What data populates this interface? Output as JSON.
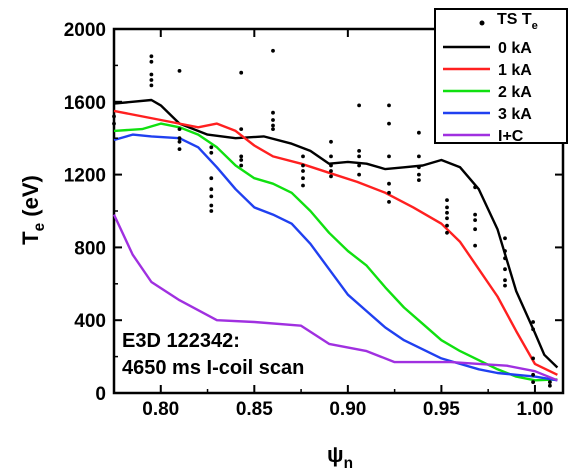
{
  "chart_data": {
    "type": "line",
    "xlabel": {
      "main": "ψ",
      "sub": "n"
    },
    "ylabel": {
      "main": "T",
      "sub": "e",
      "suffix": " (eV)"
    },
    "xlim": [
      0.775,
      1.015
    ],
    "ylim": [
      0,
      2000
    ],
    "xticks": [
      0.8,
      0.85,
      0.9,
      0.95,
      1.0
    ],
    "xtick_labels": [
      "0.80",
      "0.85",
      "0.90",
      "0.95",
      "1.00"
    ],
    "yticks": [
      0,
      400,
      800,
      1200,
      1600,
      2000
    ],
    "ytick_labels": [
      "0",
      "400",
      "800",
      "1200",
      "1600",
      "2000"
    ],
    "grid": false,
    "legend_position": "top-right",
    "legend_scatter": {
      "main": "TS T",
      "sub": "e"
    },
    "annotation": [
      "E3D 122342:",
      "4650 ms I-coil scan"
    ],
    "series": [
      {
        "name": "0 kA",
        "color": "#000000",
        "x": [
          0.775,
          0.795,
          0.8,
          0.81,
          0.825,
          0.84,
          0.855,
          0.87,
          0.88,
          0.89,
          0.9,
          0.91,
          0.92,
          0.93,
          0.94,
          0.95,
          0.96,
          0.97,
          0.98,
          0.99,
          1.0,
          1.005,
          1.012
        ],
        "y": [
          1590,
          1610,
          1580,
          1480,
          1420,
          1400,
          1410,
          1370,
          1330,
          1260,
          1270,
          1260,
          1230,
          1240,
          1250,
          1280,
          1240,
          1120,
          900,
          560,
          330,
          210,
          140
        ]
      },
      {
        "name": "1 kA",
        "color": "#ff2020",
        "x": [
          0.775,
          0.8,
          0.82,
          0.83,
          0.84,
          0.85,
          0.86,
          0.875,
          0.89,
          0.905,
          0.92,
          0.935,
          0.95,
          0.96,
          0.97,
          0.98,
          0.99,
          1.0,
          1.012
        ],
        "y": [
          1550,
          1500,
          1460,
          1480,
          1440,
          1360,
          1300,
          1260,
          1210,
          1160,
          1100,
          1020,
          930,
          830,
          680,
          530,
          340,
          160,
          100
        ]
      },
      {
        "name": "2 kA",
        "color": "#10e010",
        "x": [
          0.775,
          0.79,
          0.8,
          0.81,
          0.82,
          0.83,
          0.84,
          0.85,
          0.86,
          0.87,
          0.88,
          0.89,
          0.9,
          0.91,
          0.92,
          0.93,
          0.94,
          0.95,
          0.96,
          0.97,
          0.98,
          0.99,
          1.0,
          1.012
        ],
        "y": [
          1440,
          1450,
          1480,
          1460,
          1420,
          1350,
          1250,
          1180,
          1150,
          1100,
          1000,
          880,
          780,
          700,
          580,
          470,
          380,
          290,
          230,
          180,
          130,
          90,
          70,
          75
        ]
      },
      {
        "name": "3 kA",
        "color": "#2040f0",
        "x": [
          0.775,
          0.785,
          0.795,
          0.81,
          0.82,
          0.83,
          0.84,
          0.85,
          0.86,
          0.87,
          0.88,
          0.89,
          0.9,
          0.91,
          0.92,
          0.93,
          0.94,
          0.95,
          0.96,
          0.97,
          0.98,
          0.99,
          1.0,
          1.012
        ],
        "y": [
          1390,
          1420,
          1410,
          1400,
          1350,
          1240,
          1120,
          1020,
          980,
          930,
          820,
          680,
          540,
          450,
          360,
          290,
          240,
          190,
          160,
          130,
          110,
          100,
          90,
          70
        ]
      },
      {
        "name": "I+C",
        "color": "#a030e0",
        "x": [
          0.775,
          0.785,
          0.795,
          0.81,
          0.83,
          0.85,
          0.875,
          0.89,
          0.91,
          0.925,
          0.94,
          0.955,
          0.97,
          0.985,
          1.0,
          1.012
        ],
        "y": [
          980,
          760,
          610,
          510,
          400,
          390,
          370,
          270,
          230,
          170,
          170,
          170,
          160,
          150,
          120,
          70
        ]
      }
    ],
    "scatter": {
      "name": "TS T_e",
      "color": "#000000",
      "x": [
        0.775,
        0.775,
        0.795,
        0.795,
        0.795,
        0.795,
        0.795,
        0.81,
        0.81,
        0.81,
        0.81,
        0.81,
        0.827,
        0.827,
        0.827,
        0.827,
        0.827,
        0.827,
        0.827,
        0.843,
        0.843,
        0.843,
        0.843,
        0.843,
        0.86,
        0.86,
        0.86,
        0.86,
        0.86,
        0.876,
        0.876,
        0.876,
        0.876,
        0.876,
        0.891,
        0.891,
        0.891,
        0.891,
        0.891,
        0.906,
        0.906,
        0.906,
        0.906,
        0.906,
        0.922,
        0.922,
        0.922,
        0.922,
        0.922,
        0.922,
        0.938,
        0.938,
        0.938,
        0.938,
        0.938,
        0.953,
        0.953,
        0.953,
        0.953,
        0.953,
        0.953,
        0.968,
        0.968,
        0.968,
        0.968,
        0.968,
        0.984,
        0.984,
        0.984,
        0.984,
        0.984,
        0.984,
        0.999,
        0.999,
        0.999,
        0.999,
        0.999,
        1.008,
        1.008
      ],
      "y": [
        1520,
        1480,
        1850,
        1820,
        1750,
        1720,
        1690,
        1770,
        1450,
        1400,
        1380,
        1340,
        1350,
        1320,
        1180,
        1120,
        1080,
        1030,
        1000,
        1760,
        1450,
        1300,
        1280,
        1250,
        1880,
        1540,
        1500,
        1470,
        1450,
        1300,
        1250,
        1220,
        1180,
        1140,
        1380,
        1300,
        1250,
        1220,
        1190,
        1580,
        1330,
        1300,
        1250,
        1200,
        1580,
        1480,
        1300,
        1150,
        1100,
        1050,
        1430,
        1300,
        1240,
        1200,
        1170,
        1060,
        1020,
        990,
        960,
        920,
        880,
        1130,
        980,
        950,
        900,
        810,
        850,
        780,
        740,
        680,
        620,
        590,
        390,
        350,
        190,
        100,
        60,
        60,
        40
      ]
    }
  }
}
